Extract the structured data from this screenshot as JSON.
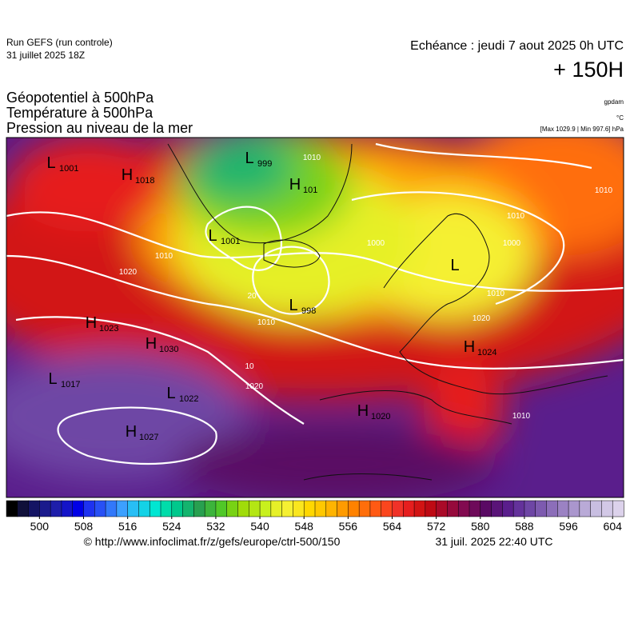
{
  "header": {
    "run": "Run GEFS (run controle)",
    "run_date": "31 juillet 2025 18Z",
    "valid": "Echéance : jeudi 7 aout 2025 0h UTC",
    "lead": "+ 150H",
    "fields": [
      "Géopotentiel à 500hPa",
      "Température à 500hPa",
      "Pression au niveau de la mer"
    ],
    "units": [
      "gpdam",
      "°C",
      "[Max 1029.9 | Min 997.6] hPa"
    ]
  },
  "map": {
    "pressure_centers": [
      {
        "kind": "L",
        "value": "1001"
      },
      {
        "kind": "H",
        "value": "1018"
      },
      {
        "kind": "L",
        "value": "999"
      },
      {
        "kind": "H",
        "value": "101"
      },
      {
        "kind": "L",
        "value": "1001"
      },
      {
        "kind": "L",
        "value": "998"
      },
      {
        "kind": "L",
        "value": null
      },
      {
        "kind": "H",
        "value": "1023"
      },
      {
        "kind": "H",
        "value": "1030"
      },
      {
        "kind": "L",
        "value": "1017"
      },
      {
        "kind": "L",
        "value": "1022"
      },
      {
        "kind": "H",
        "value": "1027"
      },
      {
        "kind": "H",
        "value": "1020"
      },
      {
        "kind": "H",
        "value": "1024"
      }
    ],
    "contour_labels": [
      "1010",
      "1020",
      "1010",
      "1010",
      "1000",
      "1010",
      "1020",
      "1010",
      "1020",
      "1010",
      "1010",
      "1000",
      "10",
      "20"
    ]
  },
  "colorbar": {
    "range": [
      494,
      606
    ],
    "ticks": [
      500,
      508,
      516,
      524,
      532,
      540,
      548,
      556,
      564,
      572,
      580,
      588,
      596,
      604
    ],
    "colors": [
      "#000000",
      "#10103a",
      "#141464",
      "#1a1a8c",
      "#1e1eaa",
      "#1414c8",
      "#0000e6",
      "#1e32f0",
      "#2850f5",
      "#3278fa",
      "#3ca0ff",
      "#28bef5",
      "#14d2e6",
      "#00e6d2",
      "#00dcaa",
      "#00c88c",
      "#14b46e",
      "#28a050",
      "#3cb43c",
      "#50c828",
      "#78d214",
      "#a0dc0a",
      "#b4e614",
      "#c8f01e",
      "#e6f028",
      "#f5f032",
      "#fae61e",
      "#ffd700",
      "#ffc800",
      "#ffb400",
      "#ff9b00",
      "#ff8200",
      "#ff6e0a",
      "#ff5a14",
      "#fa461e",
      "#f03228",
      "#e61e1e",
      "#d21414",
      "#be0a14",
      "#aa0a28",
      "#960a3c",
      "#820a50",
      "#6e0a5a",
      "#5a0a64",
      "#5a1478",
      "#5a1e8c",
      "#64329b",
      "#6e46a5",
      "#7d5aaf",
      "#8c6eb9",
      "#9b82c3",
      "#aa96cd",
      "#b9aad7",
      "#c8bee1",
      "#d2c8e6",
      "#dcd2eb"
    ]
  },
  "footer": {
    "source": "© http://www.infoclimat.fr/z/gefs/europe/ctrl-500/150",
    "generated": "31 juil. 2025 22:40 UTC"
  }
}
